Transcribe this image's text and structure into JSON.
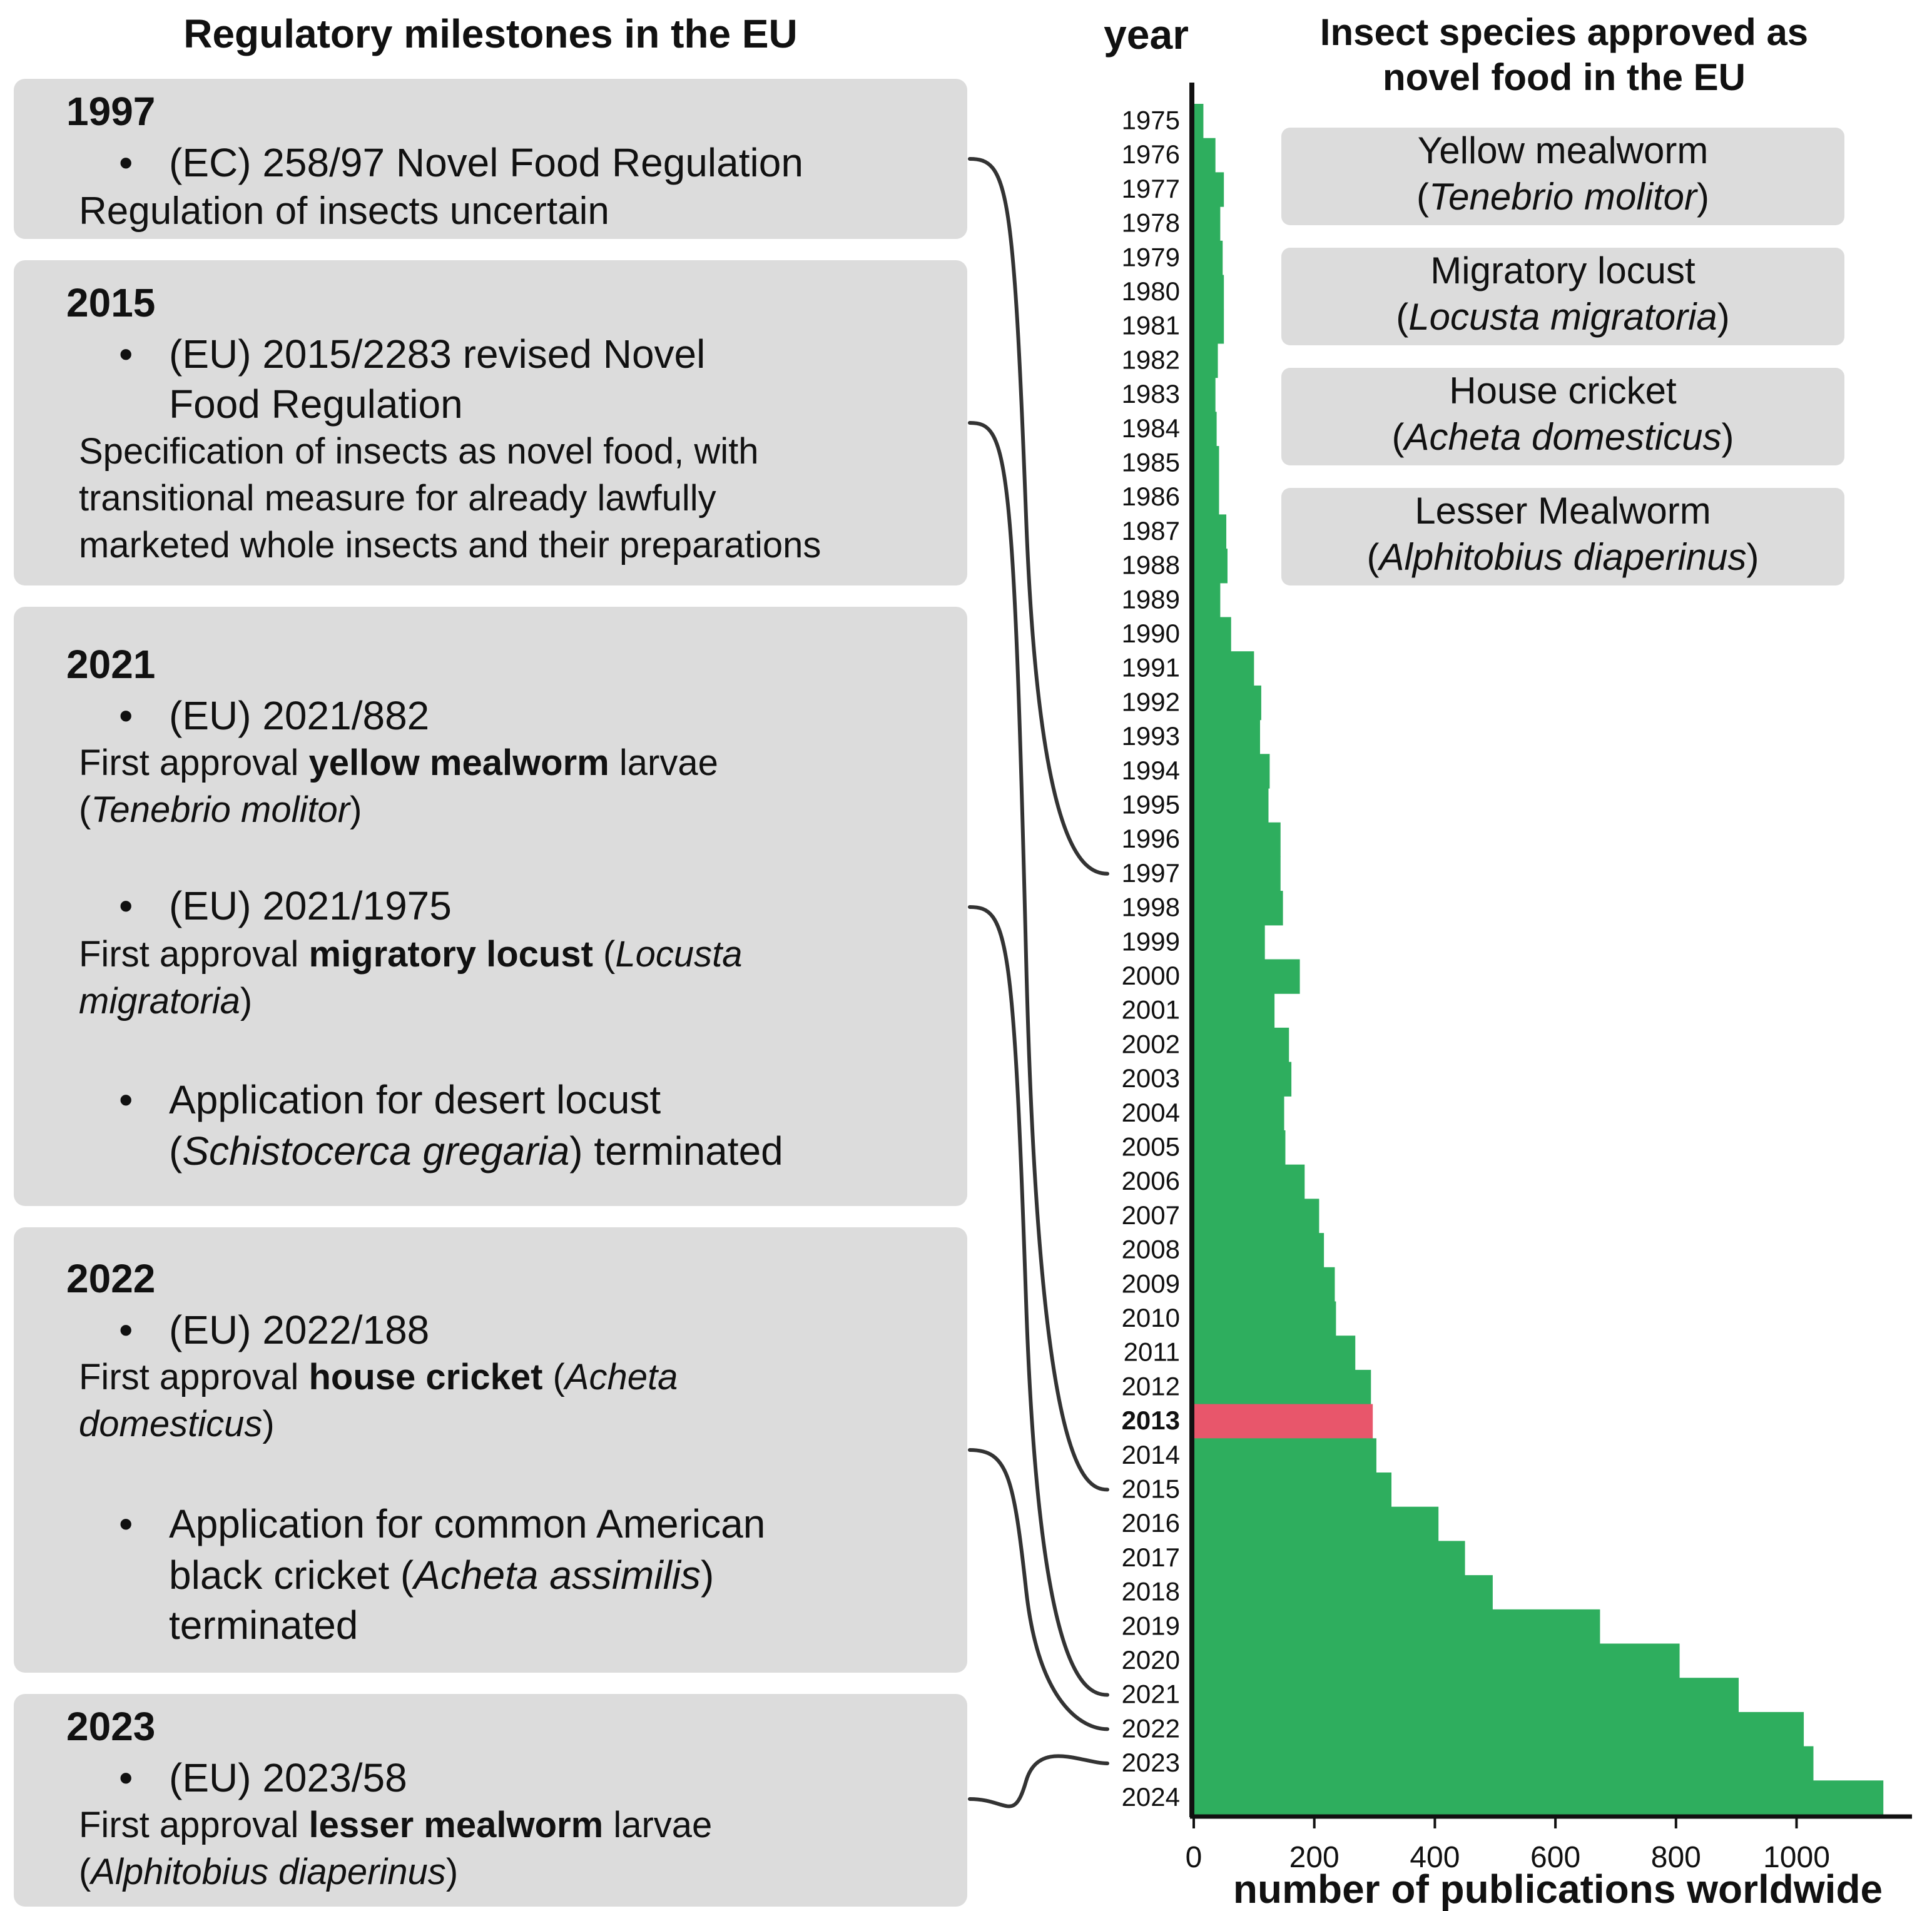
{
  "left_panel": {
    "title": "Regulatory milestones in the EU",
    "milestones": [
      {
        "year": "1997",
        "bullets": [
          "(EC) 258/97 Novel Food Regulation"
        ],
        "note": "Regulation of insects uncertain"
      },
      {
        "year": "2015",
        "bullets": [
          "(EU) 2015/2283 revised Novel",
          "Food Regulation"
        ],
        "note": [
          "Specification of insects as novel food, with",
          "transitional measure for already lawfully",
          "marketed whole insects and their preparations"
        ]
      },
      {
        "year": "2021",
        "bullets": [
          "(EU) 2021/882",
          "(EU) 2021/1975",
          "Application for desert locust",
          "(Schistocerca gregaria) terminated"
        ],
        "notes": [
          "First approval yellow mealworm larvae",
          "(Tenebrio molitor)",
          "First approval migratory locust (Locusta",
          "migratoria)"
        ],
        "note_parts": {
          "first_approval": "First approval",
          "yellow_mealworm": "yellow mealworm",
          "larvae": "larvae",
          "tenebrio": "Tenebrio molitor",
          "migratory_locust": "migratory locust",
          "locusta": "Locusta",
          "migratoria": "migratoria",
          "schistocerca": "Schistocerca gregaria",
          "desert_pre": "Application for desert locust",
          "terminated": "terminated"
        }
      },
      {
        "year": "2022",
        "bullets": [
          "(EU) 2022/188",
          "Application for common American",
          "black cricket (Acheta assimilis)",
          "terminated"
        ],
        "note_parts": {
          "first_approval": "First approval",
          "house_cricket": "house cricket",
          "acheta": "Acheta",
          "domesticus": "domesticus",
          "black_cricket": "black cricket",
          "assimilis": "Acheta assimilis",
          "terminated": "terminated"
        }
      },
      {
        "year": "2023",
        "bullets": [
          "(EU) 2023/58"
        ],
        "note_parts": {
          "first_approval": "First approval",
          "lesser_mealworm": "lesser mealworm",
          "larvae": "larvae",
          "alphitobius": "Alphitobius diaperinus"
        }
      }
    ]
  },
  "right_panel": {
    "title_line1": "Insect species approved as",
    "title_line2": "novel food in the EU",
    "species": [
      {
        "common": "Yellow mealworm",
        "latin": "Tenebrio molitor"
      },
      {
        "common": "Migratory locust",
        "latin": "Locusta migratoria"
      },
      {
        "common": "House cricket",
        "latin": "Acheta domesticus"
      },
      {
        "common": "Lesser Mealworm",
        "latin": "Alphitobius diaperinus"
      }
    ]
  },
  "colors": {
    "bar": "#2eae5e",
    "highlight": "#e8566b",
    "box": "#dcdcdc"
  },
  "chart_data": {
    "type": "bar",
    "orientation": "horizontal",
    "ylabel": "year",
    "xlabel": "number of publications worldwide",
    "xlim": [
      0,
      1150
    ],
    "xticks": [
      0,
      200,
      400,
      600,
      800,
      1000
    ],
    "highlight_category": "2013",
    "categories": [
      "1975",
      "1976",
      "1977",
      "1978",
      "1979",
      "1980",
      "1981",
      "1982",
      "1983",
      "1984",
      "1985",
      "1986",
      "1987",
      "1988",
      "1989",
      "1990",
      "1991",
      "1992",
      "1993",
      "1994",
      "1995",
      "1996",
      "1997",
      "1998",
      "1999",
      "2000",
      "2001",
      "2002",
      "2003",
      "2004",
      "2005",
      "2006",
      "2007",
      "2008",
      "2009",
      "2010",
      "2011",
      "2012",
      "2013",
      "2014",
      "2015",
      "2016",
      "2017",
      "2018",
      "2019",
      "2020",
      "2021",
      "2022",
      "2023",
      "2024"
    ],
    "values": [
      16,
      36,
      50,
      44,
      48,
      50,
      50,
      40,
      36,
      38,
      42,
      42,
      54,
      56,
      44,
      62,
      100,
      112,
      110,
      126,
      124,
      144,
      144,
      148,
      118,
      176,
      134,
      158,
      162,
      150,
      152,
      184,
      208,
      216,
      234,
      236,
      268,
      294,
      297,
      303,
      328,
      406,
      450,
      496,
      674,
      806,
      904,
      1012,
      1028,
      1144
    ],
    "milestone_years": [
      "1997",
      "2015",
      "2021",
      "2022",
      "2023"
    ]
  }
}
